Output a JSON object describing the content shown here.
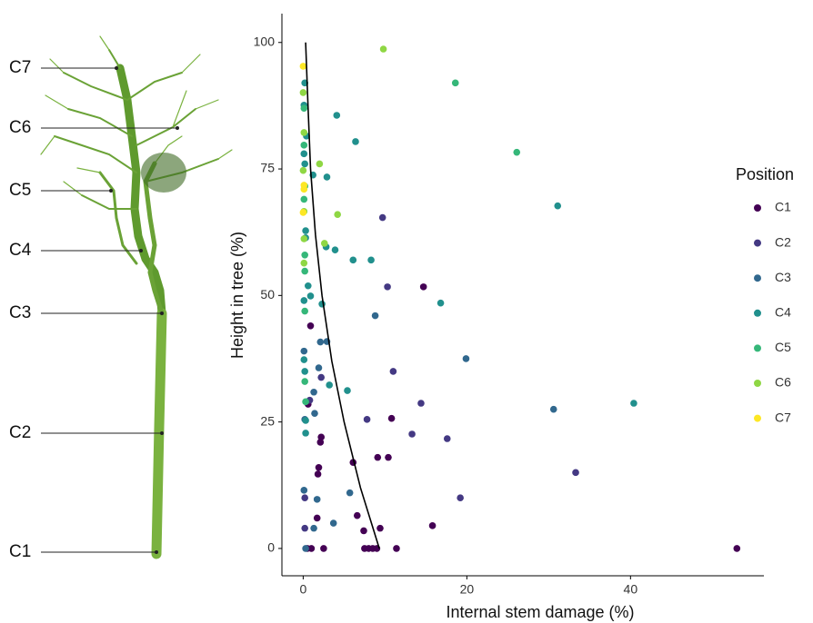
{
  "chart_data": {
    "type": "scatter",
    "x_label": "Internal stem damage (%)",
    "y_label": "Height in tree (%)",
    "legend_title": "Position",
    "legend_position": "right",
    "grid": false,
    "xlim": [
      -2.6,
      56.3
    ],
    "ylim": [
      -5.4,
      105.7
    ],
    "xticks": [
      0,
      20,
      40
    ],
    "yticks": [
      0,
      25,
      50,
      75,
      100
    ],
    "series": [
      {
        "name": "C1",
        "color": "#440154",
        "x": [
          0.5,
          1,
          2.5,
          7.5,
          8,
          8.5,
          9,
          11.4,
          53,
          9.4,
          7.4,
          6.6,
          15.8,
          1.7,
          1.9,
          2.1,
          2.2,
          6.1,
          10.4,
          9.1,
          10.8,
          0.6,
          0.9,
          14.7,
          1.8
        ],
        "y": [
          0,
          0,
          0,
          0,
          0,
          0,
          0,
          0,
          0,
          4,
          3.5,
          6.5,
          4.5,
          6,
          16,
          21,
          22,
          17,
          18,
          18,
          25.7,
          28.5,
          44,
          51.7,
          14.7
        ]
      },
      {
        "name": "C2",
        "color": "#443983",
        "x": [
          33.3,
          19.2,
          17.6,
          13.3,
          7.8,
          14.4,
          11,
          0.2,
          0.2,
          10.3,
          9.7,
          2.2,
          0.8
        ],
        "y": [
          15,
          10,
          21.7,
          22.6,
          25.5,
          28.7,
          35,
          4,
          10,
          51.7,
          65.4,
          33.8,
          29.3
        ]
      },
      {
        "name": "C3",
        "color": "#31688e",
        "x": [
          30.6,
          19.9,
          8.8,
          5.7,
          1.3,
          1.7,
          1.4,
          1.3,
          0.2,
          0.1,
          1.9,
          2.9,
          2.1,
          0.1,
          0.3,
          3.7
        ],
        "y": [
          27.5,
          37.5,
          46,
          11,
          4,
          9.7,
          26.7,
          30.9,
          25.5,
          11.5,
          35.7,
          40.9,
          40.8,
          39,
          0,
          5
        ]
      },
      {
        "name": "C4",
        "color": "#21908d",
        "x": [
          40.4,
          16.8,
          31.1,
          8.3,
          6.1,
          3.9,
          2.8,
          2.3,
          0.9,
          0.6,
          3.2,
          5.4,
          2.9,
          1.2,
          4.1,
          6.4,
          0.2,
          0.1,
          0.4,
          0.1,
          0.2,
          0.3,
          0.1,
          0.1,
          0.2,
          0.3,
          0.3,
          0.3
        ],
        "y": [
          28.7,
          48.5,
          67.7,
          57,
          57,
          59,
          59.6,
          48.3,
          49.9,
          51.9,
          32.3,
          31.2,
          73.4,
          73.8,
          85.6,
          80.4,
          92,
          87.6,
          81.5,
          78,
          76,
          61.4,
          49,
          37.3,
          35,
          25.3,
          22.8,
          62.8
        ]
      },
      {
        "name": "C5",
        "color": "#35b779",
        "x": [
          26.1,
          18.6,
          0.1,
          0.1,
          0.2,
          0.1,
          0.2,
          0.2,
          0.2,
          0.2,
          0.3
        ],
        "y": [
          78.3,
          92,
          87,
          79.7,
          71.6,
          69,
          58,
          54.8,
          46.9,
          33,
          29
        ]
      },
      {
        "name": "C6",
        "color": "#8fd744",
        "x": [
          9.8,
          4.2,
          2,
          2.6,
          0,
          0.1,
          0,
          0.1,
          0.1,
          0.1
        ],
        "y": [
          98.7,
          66,
          76,
          60.3,
          90.1,
          82.2,
          74.7,
          66.6,
          61.2,
          56.4
        ]
      },
      {
        "name": "C7",
        "color": "#fde725",
        "x": [
          0,
          0.1,
          0.1,
          0
        ],
        "y": [
          95.3,
          71.8,
          71,
          66.4
        ]
      }
    ],
    "fit_line": {
      "color": "#000000",
      "x": [
        0.3,
        0.6,
        0.9,
        1.5,
        2.3,
        3.5,
        5,
        7,
        9.3
      ],
      "y": [
        100,
        87,
        75,
        62,
        50,
        37,
        25,
        12,
        0
      ]
    }
  }
}
